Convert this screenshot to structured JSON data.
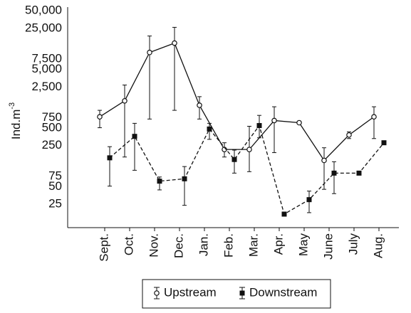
{
  "chart_data": {
    "type": "line",
    "ylabel": "Ind.m",
    "ylabel_superscript": "-3",
    "categories": [
      "Sept.",
      "Oct.",
      "Nov.",
      "Dec.",
      "Jan.",
      "Feb.",
      "Mar.",
      "Apr.",
      "May",
      "June",
      "July",
      "Aug."
    ],
    "log_scale": true,
    "ylim": [
      10,
      50000
    ],
    "yticks": [
      25,
      50,
      75,
      250,
      500,
      750,
      {
        "value": 2500,
        "label": "2,500"
      },
      {
        "value": 5000,
        "label": "5,000"
      },
      {
        "value": 7500,
        "label": "7,500"
      },
      {
        "value": 25000,
        "label": "25,000"
      },
      {
        "value": 50000,
        "label": "50,000"
      }
    ],
    "series": [
      {
        "name": "Upstream",
        "color": "#111111",
        "marker": "open-circle",
        "dashed": false,
        "values": [
          775,
          1450,
          9700,
          14000,
          1220,
          215,
          215,
          670,
          615,
          140,
          380,
          775
        ],
        "err_lo": [
          505,
          160,
          710,
          1000,
          710,
          160,
          90,
          190,
          null,
          45,
          330,
          330
        ],
        "err_hi": [
          1000,
          2700,
          18500,
          26000,
          1710,
          280,
          535,
          1150,
          null,
          230,
          430,
          1150
        ]
      },
      {
        "name": "Downstream",
        "color": "#111111",
        "marker": "filled-square",
        "dashed": true,
        "values": [
          155,
          360,
          62,
          68,
          480,
          145,
          550,
          17,
          30,
          85,
          85,
          280
        ],
        "err_lo": [
          51,
          95,
          44,
          24,
          320,
          85,
          340,
          null,
          18,
          38,
          null,
          null
        ],
        "err_hi": [
          240,
          600,
          73,
          110,
          600,
          210,
          820,
          null,
          42,
          133,
          null,
          null
        ]
      }
    ]
  }
}
